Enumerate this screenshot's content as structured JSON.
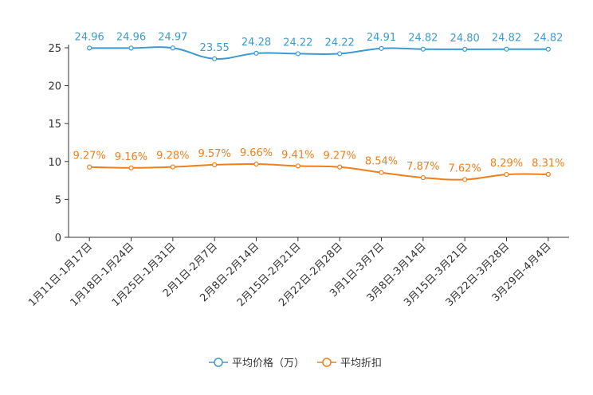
{
  "colors": {
    "price": "#3b9bd0",
    "discount": "#f07f1b",
    "axis": "#333333"
  },
  "chart_data": {
    "type": "line",
    "title": "",
    "xlabel": "",
    "ylabel": "",
    "ylim": [
      0,
      25
    ],
    "yticks": [
      0,
      5,
      10,
      15,
      20,
      25
    ],
    "ytick_labels": [
      "0",
      "5",
      "10",
      "15",
      "20",
      "25"
    ],
    "categories": [
      "1月11日-1月17日",
      "1月18日-1月24日",
      "1月25日-1月31日",
      "2月1日-2月7日",
      "2月8日-2月14日",
      "2月15日-2月21日",
      "2月22日-2月28日",
      "3月1日-3月7日",
      "3月8日-3月14日",
      "3月15日-3月21日",
      "3月22日-3月28日",
      "3月29日-4月4日"
    ],
    "series": [
      {
        "name": "平均价格（万）",
        "values": [
          24.96,
          24.96,
          24.97,
          23.55,
          24.28,
          24.22,
          24.22,
          24.91,
          24.82,
          24.8,
          24.82,
          24.82
        ],
        "labels": [
          "24.96",
          "24.96",
          "24.97",
          "23.55",
          "24.28",
          "24.22",
          "24.22",
          "24.91",
          "24.82",
          "24.80",
          "24.82",
          "24.82"
        ]
      },
      {
        "name": "平均折扣",
        "values": [
          9.27,
          9.16,
          9.28,
          9.57,
          9.66,
          9.41,
          9.27,
          8.54,
          7.87,
          7.62,
          8.29,
          8.31
        ],
        "labels": [
          "9.27%",
          "9.16%",
          "9.28%",
          "9.57%",
          "9.66%",
          "9.41%",
          "9.27%",
          "8.54%",
          "7.87%",
          "7.62%",
          "8.29%",
          "8.31%"
        ]
      }
    ],
    "legend": {
      "position": "bottom",
      "items": [
        "平均价格（万）",
        "平均折扣"
      ]
    }
  }
}
